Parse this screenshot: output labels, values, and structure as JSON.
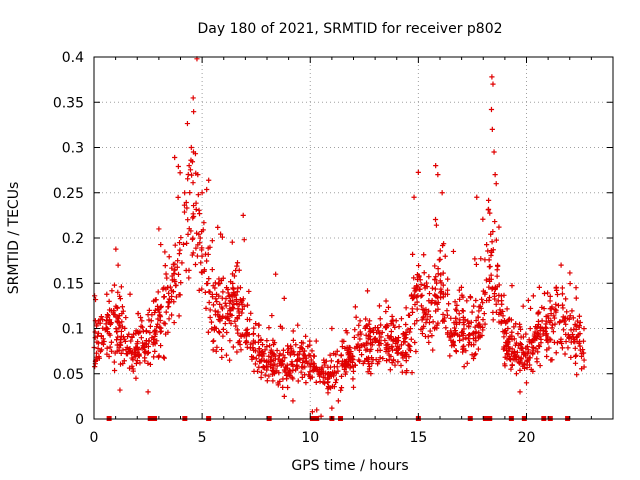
{
  "chart_data": {
    "type": "scatter",
    "title": "Day 180 of 2021, SRMTID for receiver p802",
    "xlabel": "GPS time / hours",
    "ylabel": "SRMTID / TECUs",
    "xlim": [
      0,
      24
    ],
    "ylim": [
      0,
      0.4
    ],
    "xticks": [
      0,
      5,
      10,
      15,
      20
    ],
    "xtick_labels": [
      "0",
      "5",
      "10",
      "15",
      "20"
    ],
    "yticks": [
      0,
      0.05,
      0.1,
      0.15,
      0.2,
      0.25,
      0.3,
      0.35,
      0.4
    ],
    "ytick_labels": [
      "0",
      "0.05",
      "0.1",
      "0.15",
      "0.2",
      "0.25",
      "0.3",
      "0.35",
      "0.4"
    ],
    "grid": true,
    "marker": "+",
    "color": "#e00000",
    "x_range": [
      0.0,
      22.7
    ],
    "envelope": [
      [
        0.0,
        0.08
      ],
      [
        0.5,
        0.09
      ],
      [
        1.0,
        0.1
      ],
      [
        1.5,
        0.08
      ],
      [
        2.0,
        0.07
      ],
      [
        2.6,
        0.08
      ],
      [
        3.2,
        0.12
      ],
      [
        3.8,
        0.16
      ],
      [
        4.3,
        0.22
      ],
      [
        4.6,
        0.25
      ],
      [
        5.0,
        0.18
      ],
      [
        5.5,
        0.12
      ],
      [
        6.0,
        0.11
      ],
      [
        6.5,
        0.13
      ],
      [
        7.0,
        0.1
      ],
      [
        7.5,
        0.07
      ],
      [
        8.5,
        0.06
      ],
      [
        9.5,
        0.065
      ],
      [
        10.2,
        0.06
      ],
      [
        10.8,
        0.045
      ],
      [
        11.5,
        0.06
      ],
      [
        12.5,
        0.08
      ],
      [
        13.5,
        0.085
      ],
      [
        14.5,
        0.08
      ],
      [
        15.0,
        0.14
      ],
      [
        15.5,
        0.12
      ],
      [
        16.0,
        0.15
      ],
      [
        16.5,
        0.1
      ],
      [
        17.5,
        0.09
      ],
      [
        18.0,
        0.12
      ],
      [
        18.3,
        0.2
      ],
      [
        18.6,
        0.15
      ],
      [
        19.0,
        0.09
      ],
      [
        19.5,
        0.07
      ],
      [
        20.0,
        0.07
      ],
      [
        20.5,
        0.09
      ],
      [
        21.0,
        0.1
      ],
      [
        21.5,
        0.11
      ],
      [
        22.0,
        0.09
      ],
      [
        22.7,
        0.085
      ]
    ],
    "peaks": [
      [
        4.5,
        0.3
      ],
      [
        4.6,
        0.295
      ],
      [
        4.4,
        0.28
      ],
      [
        4.8,
        0.27
      ],
      [
        5.0,
        0.25
      ],
      [
        15.8,
        0.28
      ],
      [
        15.9,
        0.27
      ],
      [
        16.1,
        0.25
      ],
      [
        14.8,
        0.245
      ],
      [
        18.4,
        0.378
      ],
      [
        18.45,
        0.37
      ],
      [
        18.38,
        0.342
      ],
      [
        18.42,
        0.32
      ],
      [
        18.5,
        0.295
      ],
      [
        18.55,
        0.27
      ],
      [
        18.6,
        0.26
      ],
      [
        17.7,
        0.245
      ],
      [
        3.0,
        0.21
      ],
      [
        6.9,
        0.225
      ],
      [
        21.6,
        0.17
      ],
      [
        8.4,
        0.16
      ],
      [
        13.2,
        0.125
      ],
      [
        11.0,
        0.1
      ],
      [
        0.7,
        0.13
      ],
      [
        1.1,
        0.14
      ]
    ],
    "lows": [
      [
        10.1,
        0.008
      ],
      [
        10.3,
        0.01
      ],
      [
        11.0,
        0.012
      ],
      [
        11.3,
        0.02
      ],
      [
        9.2,
        0.02
      ],
      [
        10.5,
        0.003
      ],
      [
        19.7,
        0.03
      ],
      [
        2.5,
        0.03
      ],
      [
        1.2,
        0.032
      ],
      [
        20.0,
        0.04
      ],
      [
        12.0,
        0.035
      ],
      [
        8.8,
        0.025
      ]
    ],
    "gaps_at_zero": [
      0.7,
      2.6,
      2.8,
      4.2,
      5.3,
      8.1,
      10.1,
      10.3,
      11.0,
      11.4,
      15.0,
      17.4,
      18.1,
      18.3,
      19.3,
      19.9,
      20.8,
      21.1,
      21.9
    ]
  }
}
